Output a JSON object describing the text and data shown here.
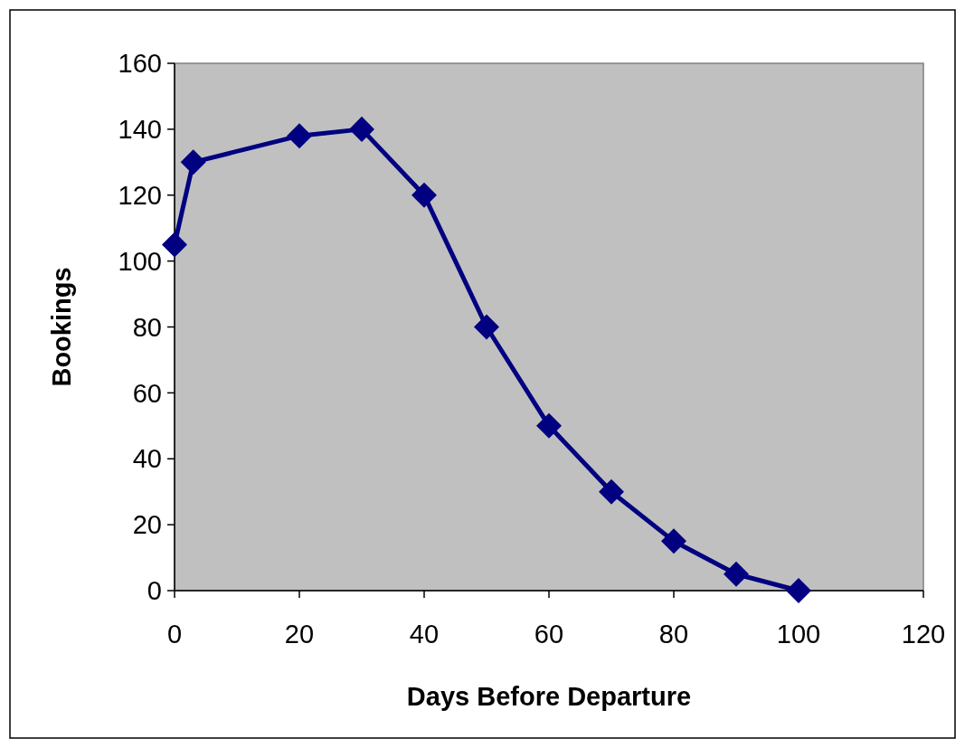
{
  "chart_data": {
    "type": "line",
    "xlabel": "Days Before Departure",
    "ylabel": "Bookings",
    "x": [
      0,
      3,
      20,
      30,
      40,
      50,
      60,
      70,
      80,
      90,
      100
    ],
    "series": [
      {
        "color": "#000080",
        "values": [
          105,
          130,
          138,
          140,
          120,
          80,
          50,
          30,
          15,
          5,
          0
        ]
      }
    ],
    "xlim": [
      0,
      120
    ],
    "xticks": [
      0,
      20,
      40,
      60,
      80,
      100,
      120
    ],
    "ylim": [
      0,
      160
    ],
    "yticks": [
      0,
      20,
      40,
      60,
      80,
      100,
      120,
      140,
      160
    ],
    "grid": false,
    "marker": "diamond",
    "line_style": "solid"
  }
}
